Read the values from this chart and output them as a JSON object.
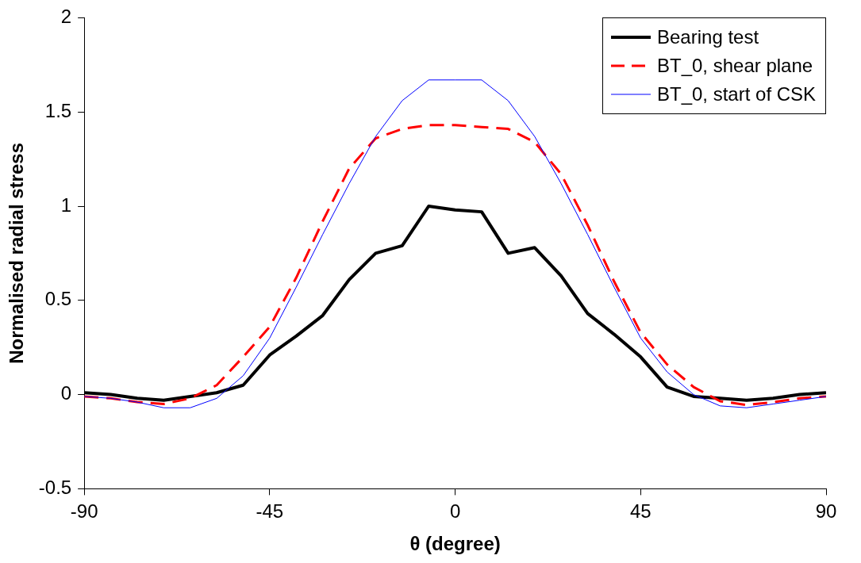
{
  "chart_data": {
    "type": "line",
    "xlabel": "θ (degree)",
    "ylabel": "Normalised radial stress",
    "x": [
      -90,
      -83.57,
      -77.14,
      -70.71,
      -64.29,
      -57.86,
      -51.43,
      -45,
      -38.57,
      -32.14,
      -25.71,
      -19.29,
      -12.86,
      -6.43,
      0,
      6.43,
      12.86,
      19.29,
      25.71,
      32.14,
      38.57,
      45,
      51.43,
      57.86,
      64.29,
      70.71,
      77.14,
      83.57,
      90
    ],
    "series": [
      {
        "name": "Bearing test",
        "color": "#000000",
        "line_style": "solid",
        "values": [
          0.01,
          0,
          -0.02,
          -0.03,
          -0.01,
          0.01,
          0.05,
          0.21,
          0.31,
          0.42,
          0.61,
          0.75,
          0.79,
          1.0,
          0.98,
          0.97,
          0.75,
          0.78,
          0.63,
          0.43,
          0.32,
          0.2,
          0.04,
          -0.01,
          -0.02,
          -0.03,
          -0.02,
          0,
          0.01
        ]
      },
      {
        "name": "BT_0, shear plane",
        "color": "#ff0000",
        "line_style": "dashed",
        "values": [
          -0.01,
          -0.02,
          -0.04,
          -0.05,
          -0.02,
          0.05,
          0.2,
          0.36,
          0.62,
          0.92,
          1.2,
          1.36,
          1.41,
          1.43,
          1.43,
          1.42,
          1.41,
          1.34,
          1.17,
          0.9,
          0.6,
          0.33,
          0.16,
          0.04,
          -0.035,
          -0.055,
          -0.04,
          -0.02,
          -0.01
        ]
      },
      {
        "name": "BT_0, start of CSK",
        "color": "#0000ff",
        "line_style": "solid",
        "values": [
          -0.01,
          -0.02,
          -0.04,
          -0.07,
          -0.07,
          -0.02,
          0.1,
          0.3,
          0.57,
          0.85,
          1.12,
          1.37,
          1.56,
          1.67,
          1.67,
          1.67,
          1.56,
          1.37,
          1.12,
          0.85,
          0.57,
          0.3,
          0.12,
          0,
          -0.06,
          -0.07,
          -0.05,
          -0.03,
          -0.01
        ]
      }
    ],
    "xlim": [
      -90,
      90
    ],
    "xticks": [
      -90,
      -45,
      0,
      45,
      90
    ],
    "ylim": [
      -0.5,
      2
    ],
    "yticks": [
      -0.5,
      0,
      0.5,
      1,
      1.5,
      2
    ],
    "grid": false,
    "legend": "top right",
    "marker": "none"
  }
}
